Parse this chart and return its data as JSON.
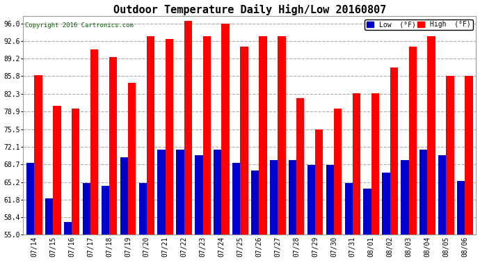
{
  "title": "Outdoor Temperature Daily High/Low 20160807",
  "copyright": "Copyright 2016 Cartronics.com",
  "dates": [
    "07/14",
    "07/15",
    "07/16",
    "07/17",
    "07/18",
    "07/19",
    "07/20",
    "07/21",
    "07/22",
    "07/23",
    "07/24",
    "07/25",
    "07/26",
    "07/27",
    "07/28",
    "07/29",
    "07/30",
    "07/31",
    "08/01",
    "08/02",
    "08/03",
    "08/04",
    "08/05",
    "08/06"
  ],
  "highs": [
    86.0,
    80.0,
    79.5,
    91.0,
    89.5,
    84.5,
    93.5,
    93.0,
    96.5,
    93.5,
    96.0,
    91.5,
    93.5,
    93.5,
    81.5,
    75.5,
    79.5,
    82.5,
    82.5,
    87.5,
    91.5,
    93.5,
    85.8,
    85.8
  ],
  "lows": [
    69.0,
    62.0,
    57.5,
    65.0,
    64.5,
    70.0,
    65.0,
    71.5,
    71.5,
    70.5,
    71.5,
    69.0,
    67.5,
    69.5,
    69.5,
    68.5,
    68.5,
    65.0,
    64.0,
    67.0,
    69.5,
    71.5,
    70.5,
    65.5
  ],
  "high_color": "#ff0000",
  "low_color": "#0000cc",
  "ylim_min": 55.0,
  "ylim_max": 97.5,
  "yticks": [
    55.0,
    58.4,
    61.8,
    65.2,
    68.7,
    72.1,
    75.5,
    78.9,
    82.3,
    85.8,
    89.2,
    92.6,
    96.0
  ],
  "bg_color": "#ffffff",
  "grid_color": "#aaaaaa",
  "bar_width": 0.42,
  "title_fontsize": 11,
  "tick_fontsize": 7,
  "copyright_color": "#006600",
  "legend_low_label": "Low  (°F)",
  "legend_high_label": "High  (°F)"
}
